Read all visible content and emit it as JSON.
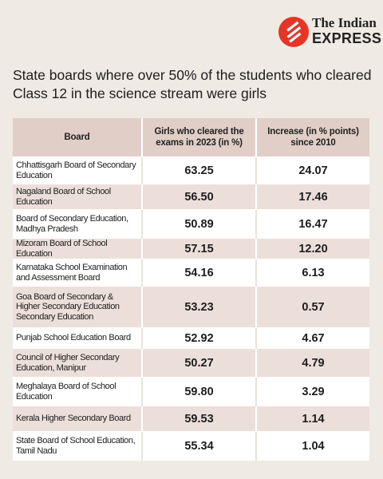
{
  "brand": {
    "line1": "The Indian",
    "line2": "EXPRESS",
    "accent": "#e63426"
  },
  "title": "State boards where over 50% of the students who cleared Class 12 in the science stream were girls",
  "chart_data": {
    "type": "table",
    "columns": [
      "Board",
      "Girls who cleared the exams in 2023 (in %)",
      "Increase (in % points) since 2010"
    ],
    "rows": [
      {
        "board": "Chhattisgarh Board of Secondary Education",
        "girls": "63.25",
        "increase": "24.07"
      },
      {
        "board": "Nagaland Board of School Education",
        "girls": "56.50",
        "increase": "17.46"
      },
      {
        "board": "Board of Secondary Education, Madhya Pradesh",
        "girls": "50.89",
        "increase": "16.47"
      },
      {
        "board": "Mizoram Board of School Education",
        "girls": "57.15",
        "increase": "12.20"
      },
      {
        "board": "Karnataka School Examination and Assessment Board",
        "girls": "54.16",
        "increase": "6.13"
      },
      {
        "board": "Goa Board of Secondary & Higher Secondary Education Secondary Education",
        "girls": "53.23",
        "increase": "0.57"
      },
      {
        "board": "Punjab School Education Board",
        "girls": "52.92",
        "increase": "4.67"
      },
      {
        "board": "Council of Higher Secondary Education, Manipur",
        "girls": "50.27",
        "increase": "4.79"
      },
      {
        "board": "Meghalaya Board of School Education",
        "girls": "59.80",
        "increase": "3.29"
      },
      {
        "board": "Kerala Higher Secondary Board",
        "girls": "59.53",
        "increase": "1.14"
      },
      {
        "board": "State Board of School Education, Tamil Nadu",
        "girls": "55.34",
        "increase": "1.04"
      }
    ]
  }
}
